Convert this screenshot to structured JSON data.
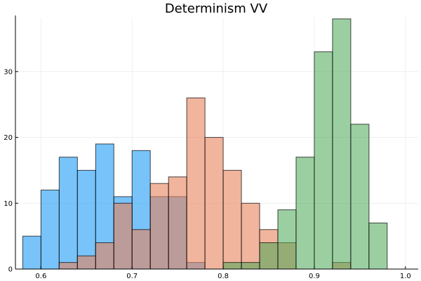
{
  "chart_data": {
    "type": "bar",
    "title": "Determinism VV",
    "xlabel": "",
    "ylabel": "",
    "xlim": [
      0.572,
      1.014
    ],
    "ylim": [
      0,
      38.2
    ],
    "x_ticks": [
      0.6,
      0.7,
      0.8,
      0.9,
      1.0
    ],
    "x_tick_labels": [
      "0.6",
      "0.7",
      "0.8",
      "0.9",
      "1.0"
    ],
    "y_ticks": [
      0,
      10,
      20,
      30
    ],
    "y_tick_labels": [
      "0",
      "10",
      "20",
      "30"
    ],
    "grid": true,
    "legend": "none",
    "bin_width": 0.02,
    "series": [
      {
        "color": "#1e9bf5",
        "opacity": 0.6,
        "bins": [
          {
            "x0": 0.58,
            "count": 5
          },
          {
            "x0": 0.6,
            "count": 12
          },
          {
            "x0": 0.62,
            "count": 17
          },
          {
            "x0": 0.64,
            "count": 15
          },
          {
            "x0": 0.66,
            "count": 19
          },
          {
            "x0": 0.68,
            "count": 11
          },
          {
            "x0": 0.7,
            "count": 18
          },
          {
            "x0": 0.72,
            "count": 11
          },
          {
            "x0": 0.74,
            "count": 11
          },
          {
            "x0": 0.76,
            "count": 1
          }
        ]
      },
      {
        "color": "#e8825c",
        "opacity": 0.6,
        "bins": [
          {
            "x0": 0.62,
            "count": 1
          },
          {
            "x0": 0.64,
            "count": 2
          },
          {
            "x0": 0.66,
            "count": 4
          },
          {
            "x0": 0.68,
            "count": 10
          },
          {
            "x0": 0.7,
            "count": 6
          },
          {
            "x0": 0.72,
            "count": 13
          },
          {
            "x0": 0.74,
            "count": 14
          },
          {
            "x0": 0.76,
            "count": 26
          },
          {
            "x0": 0.78,
            "count": 20
          },
          {
            "x0": 0.8,
            "count": 15
          },
          {
            "x0": 0.82,
            "count": 10
          },
          {
            "x0": 0.84,
            "count": 6
          },
          {
            "x0": 0.86,
            "count": 4
          },
          {
            "x0": 0.92,
            "count": 1
          }
        ]
      },
      {
        "color": "#48a853",
        "opacity": 0.55,
        "bins": [
          {
            "x0": 0.8,
            "count": 1
          },
          {
            "x0": 0.82,
            "count": 1
          },
          {
            "x0": 0.84,
            "count": 4
          },
          {
            "x0": 0.86,
            "count": 9
          },
          {
            "x0": 0.88,
            "count": 17
          },
          {
            "x0": 0.9,
            "count": 33
          },
          {
            "x0": 0.92,
            "count": 38
          },
          {
            "x0": 0.94,
            "count": 22
          },
          {
            "x0": 0.96,
            "count": 7
          }
        ]
      }
    ]
  }
}
